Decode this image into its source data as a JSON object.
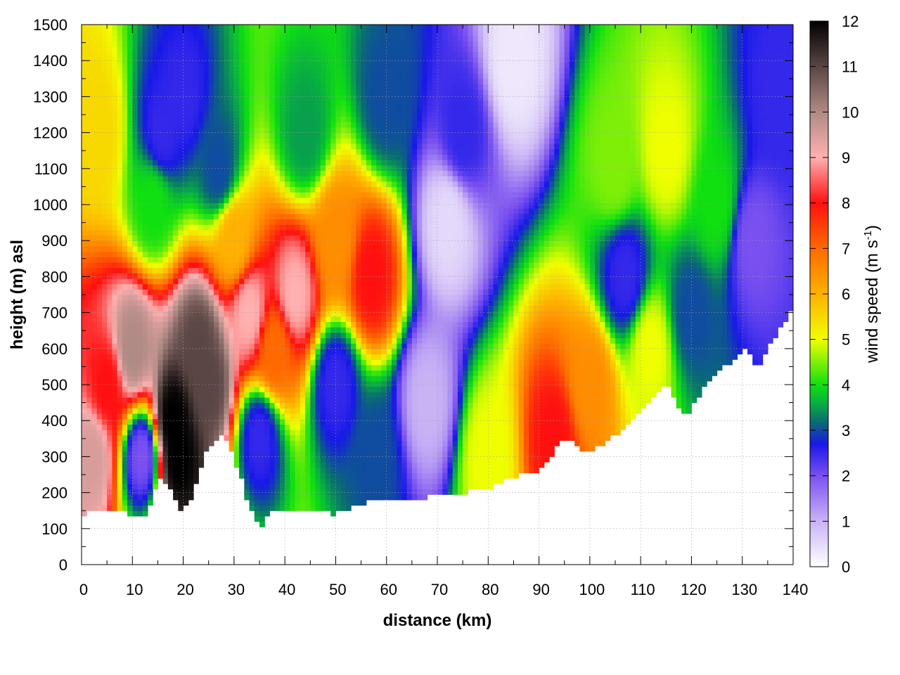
{
  "chart_data": {
    "type": "heatmap",
    "title": "",
    "xlabel": "distance (km)",
    "ylabel": "height (m) asl",
    "xlim": [
      0,
      140
    ],
    "ylim": [
      0,
      1500
    ],
    "x_ticks": [
      0,
      10,
      20,
      30,
      40,
      50,
      60,
      70,
      80,
      90,
      100,
      110,
      120,
      130,
      140
    ],
    "y_ticks": [
      0,
      100,
      200,
      300,
      400,
      500,
      600,
      700,
      800,
      900,
      1000,
      1100,
      1200,
      1300,
      1400,
      1500
    ],
    "grid": true,
    "colorbar": {
      "label": "wind speed (m s",
      "label_superscript": "-1",
      "label_suffix": ")",
      "range": [
        0,
        12
      ],
      "ticks": [
        0,
        1,
        2,
        3,
        4,
        5,
        6,
        7,
        8,
        9,
        10,
        11,
        12
      ],
      "stops": [
        {
          "value": 0,
          "color": "#ffffff"
        },
        {
          "value": 1,
          "color": "#c9b3f5"
        },
        {
          "value": 2,
          "color": "#7a50f0"
        },
        {
          "value": 2.7,
          "color": "#1818e8"
        },
        {
          "value": 3.2,
          "color": "#0a6e70"
        },
        {
          "value": 3.6,
          "color": "#08b040"
        },
        {
          "value": 4,
          "color": "#10e010"
        },
        {
          "value": 5,
          "color": "#f0ff00"
        },
        {
          "value": 6,
          "color": "#ffb000"
        },
        {
          "value": 7,
          "color": "#ff6a00"
        },
        {
          "value": 8,
          "color": "#ff1010"
        },
        {
          "value": 9,
          "color": "#ffb0b0"
        },
        {
          "value": 10,
          "color": "#b08a85"
        },
        {
          "value": 11,
          "color": "#5a4644"
        },
        {
          "value": 12,
          "color": "#000000"
        }
      ]
    },
    "terrain_height": [
      {
        "x": 0,
        "h": 140
      },
      {
        "x": 2,
        "h": 150
      },
      {
        "x": 5,
        "h": 145
      },
      {
        "x": 8,
        "h": 145
      },
      {
        "x": 11,
        "h": 135
      },
      {
        "x": 13,
        "h": 145
      },
      {
        "x": 15,
        "h": 235
      },
      {
        "x": 17,
        "h": 230
      },
      {
        "x": 19,
        "h": 155
      },
      {
        "x": 21,
        "h": 165
      },
      {
        "x": 23,
        "h": 250
      },
      {
        "x": 25,
        "h": 330
      },
      {
        "x": 28,
        "h": 360
      },
      {
        "x": 31,
        "h": 260
      },
      {
        "x": 33,
        "h": 160
      },
      {
        "x": 35,
        "h": 100
      },
      {
        "x": 37,
        "h": 150
      },
      {
        "x": 40,
        "h": 150
      },
      {
        "x": 43,
        "h": 150
      },
      {
        "x": 47,
        "h": 150
      },
      {
        "x": 50,
        "h": 140
      },
      {
        "x": 55,
        "h": 170
      },
      {
        "x": 60,
        "h": 180
      },
      {
        "x": 65,
        "h": 175
      },
      {
        "x": 70,
        "h": 200
      },
      {
        "x": 75,
        "h": 200
      },
      {
        "x": 80,
        "h": 210
      },
      {
        "x": 85,
        "h": 245
      },
      {
        "x": 90,
        "h": 260
      },
      {
        "x": 95,
        "h": 350
      },
      {
        "x": 100,
        "h": 310
      },
      {
        "x": 105,
        "h": 360
      },
      {
        "x": 110,
        "h": 430
      },
      {
        "x": 115,
        "h": 510
      },
      {
        "x": 119,
        "h": 400
      },
      {
        "x": 121,
        "h": 460
      },
      {
        "x": 125,
        "h": 540
      },
      {
        "x": 128,
        "h": 560
      },
      {
        "x": 131,
        "h": 600
      },
      {
        "x": 133,
        "h": 550
      },
      {
        "x": 136,
        "h": 620
      },
      {
        "x": 140,
        "h": 720
      }
    ],
    "wind_speed_field_samples": [
      {
        "x": 2,
        "z": 300,
        "v": 9.5
      },
      {
        "x": 5,
        "z": 500,
        "v": 8
      },
      {
        "x": 3,
        "z": 1200,
        "v": 5.5
      },
      {
        "x": 10,
        "z": 600,
        "v": 10
      },
      {
        "x": 12,
        "z": 300,
        "v": 2
      },
      {
        "x": 14,
        "z": 1000,
        "v": 4
      },
      {
        "x": 16,
        "z": 1200,
        "v": 2.5
      },
      {
        "x": 18,
        "z": 400,
        "v": 12
      },
      {
        "x": 19,
        "z": 300,
        "v": 12
      },
      {
        "x": 20,
        "z": 1300,
        "v": 2.5
      },
      {
        "x": 23,
        "z": 600,
        "v": 11
      },
      {
        "x": 25,
        "z": 500,
        "v": 11
      },
      {
        "x": 27,
        "z": 1100,
        "v": 3
      },
      {
        "x": 30,
        "z": 900,
        "v": 6
      },
      {
        "x": 33,
        "z": 700,
        "v": 9
      },
      {
        "x": 35,
        "z": 350,
        "v": 2.5
      },
      {
        "x": 38,
        "z": 600,
        "v": 7
      },
      {
        "x": 42,
        "z": 750,
        "v": 9
      },
      {
        "x": 44,
        "z": 1200,
        "v": 3.5
      },
      {
        "x": 50,
        "z": 500,
        "v": 2.5
      },
      {
        "x": 50,
        "z": 900,
        "v": 6.5
      },
      {
        "x": 57,
        "z": 800,
        "v": 8
      },
      {
        "x": 58,
        "z": 300,
        "v": 3
      },
      {
        "x": 60,
        "z": 1300,
        "v": 3
      },
      {
        "x": 68,
        "z": 450,
        "v": 1
      },
      {
        "x": 72,
        "z": 950,
        "v": 0.5
      },
      {
        "x": 75,
        "z": 1200,
        "v": 2.5
      },
      {
        "x": 80,
        "z": 300,
        "v": 5
      },
      {
        "x": 85,
        "z": 1400,
        "v": 0.3
      },
      {
        "x": 93,
        "z": 350,
        "v": 8
      },
      {
        "x": 100,
        "z": 500,
        "v": 6.5
      },
      {
        "x": 105,
        "z": 1100,
        "v": 4.5
      },
      {
        "x": 107,
        "z": 800,
        "v": 2.5
      },
      {
        "x": 112,
        "z": 600,
        "v": 5
      },
      {
        "x": 115,
        "z": 1150,
        "v": 5
      },
      {
        "x": 120,
        "z": 700,
        "v": 3
      },
      {
        "x": 125,
        "z": 1000,
        "v": 4
      },
      {
        "x": 132,
        "z": 900,
        "v": 2
      },
      {
        "x": 137,
        "z": 1300,
        "v": 2.5
      }
    ]
  }
}
